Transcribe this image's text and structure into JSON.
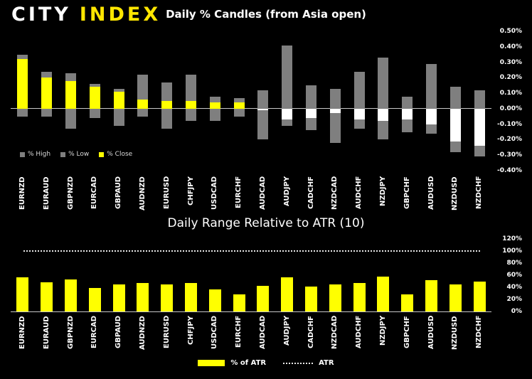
{
  "logo": {
    "city": "CITY",
    "index": "INDEX"
  },
  "colors": {
    "background": "#000000",
    "bar_gray": "#7f7f7f",
    "bar_yellow": "#ffff00",
    "bar_white": "#ffffff",
    "axis_line": "#c8c8c8",
    "text": "#ffffff",
    "legend_text": "#d9d9d9",
    "logo_yellow": "#ffe600"
  },
  "chart_data": [
    {
      "type": "bar",
      "title": "Daily % Candles (from Asia open)",
      "categories": [
        "EURNZD",
        "EURAUD",
        "GBPNZD",
        "EURCAD",
        "GBPAUD",
        "AUDNZD",
        "EURUSD",
        "CHFJPY",
        "USDCAD",
        "EURCHF",
        "AUDCAD",
        "AUDJPY",
        "CADCHF",
        "NZDCAD",
        "AUDCHF",
        "NZDJPY",
        "GBPCHF",
        "AUDUSD",
        "NZDUSD",
        "NZDCHF"
      ],
      "series": [
        {
          "name": "% High",
          "values": [
            0.35,
            0.24,
            0.23,
            0.16,
            0.13,
            0.22,
            0.17,
            0.22,
            0.08,
            0.07,
            0.12,
            0.41,
            0.15,
            0.13,
            0.24,
            0.33,
            0.08,
            0.29,
            0.14,
            0.12
          ]
        },
        {
          "name": "% Low",
          "values": [
            -0.05,
            -0.05,
            -0.13,
            -0.06,
            -0.11,
            -0.05,
            -0.13,
            -0.08,
            -0.08,
            -0.05,
            -0.2,
            -0.11,
            -0.14,
            -0.22,
            -0.13,
            -0.2,
            -0.15,
            -0.16,
            -0.28,
            -0.31
          ]
        },
        {
          "name": "% Close",
          "values": [
            0.32,
            0.2,
            0.18,
            0.14,
            0.11,
            0.06,
            0.05,
            0.05,
            0.04,
            0.04,
            -0.01,
            -0.07,
            -0.06,
            -0.03,
            -0.07,
            -0.08,
            -0.07,
            -0.1,
            -0.21,
            -0.24
          ]
        }
      ],
      "ylim": [
        -0.4,
        0.5
      ],
      "ytick_step": 0.1,
      "ytick_labels": [
        "0.50%",
        "0.40%",
        "0.30%",
        "0.20%",
        "0.10%",
        "0.00%",
        "-0.10%",
        "-0.20%",
        "-0.30%",
        "-0.40%"
      ],
      "grid": false,
      "legend_position": "inside-bottom-left",
      "note": "gray bars span % High to % Low; close bar drawn from 0, yellow when positive, white when negative"
    },
    {
      "type": "bar",
      "title": "Daily Range Relative to ATR (10)",
      "categories": [
        "EURNZD",
        "EURAUD",
        "GBPNZD",
        "EURCAD",
        "GBPAUD",
        "AUDNZD",
        "EURUSD",
        "CHFJPY",
        "USDCAD",
        "EURCHF",
        "AUDCAD",
        "AUDJPY",
        "CADCHF",
        "NZDCAD",
        "AUDCHF",
        "NZDJPY",
        "GBPCHF",
        "AUDUSD",
        "NZDUSD",
        "NZDCHF"
      ],
      "series": [
        {
          "name": "% of ATR",
          "values": [
            57,
            48,
            53,
            39,
            45,
            47,
            45,
            47,
            36,
            28,
            43,
            56,
            41,
            45,
            47,
            58,
            28,
            52,
            45,
            50
          ]
        },
        {
          "name": "ATR",
          "type": "line",
          "style": "dotted",
          "value": 100
        }
      ],
      "ylim": [
        0,
        120
      ],
      "ytick_step": 20,
      "ytick_labels": [
        "120%",
        "100%",
        "80%",
        "60%",
        "40%",
        "20%",
        "0%"
      ],
      "grid": false,
      "legend_position": "bottom-center"
    }
  ]
}
